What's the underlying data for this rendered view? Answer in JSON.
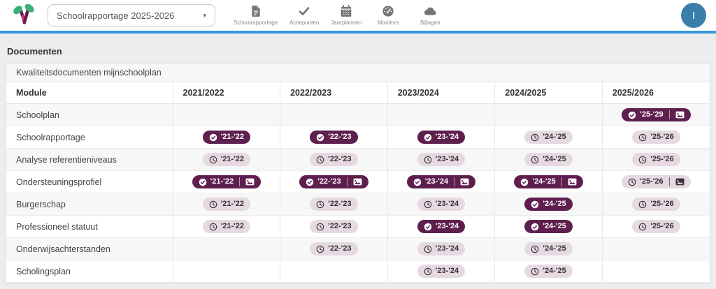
{
  "header": {
    "dropdown": {
      "value": "Schoolrapportage 2025-2026",
      "caret": "▾"
    },
    "nav": [
      {
        "label": "Schoolrapportage",
        "icon": "document-icon"
      },
      {
        "label": "Actiepunten",
        "icon": "check-icon"
      },
      {
        "label": "Jaarplannen",
        "icon": "calendar-icon"
      },
      {
        "label": "Monitors",
        "icon": "gauge-icon"
      },
      {
        "label": "Bijlagen",
        "icon": "cloud-icon"
      }
    ],
    "avatar": {
      "initial": "I",
      "color": "#3a7fa9"
    }
  },
  "page": {
    "title": "Documenten"
  },
  "table": {
    "caption": "Kwaliteitsdocumenten mijnschoolplan",
    "columns": [
      "Module",
      "2021/2022",
      "2022/2023",
      "2023/2024",
      "2024/2025",
      "2025/2026"
    ],
    "rows": [
      {
        "module": "Schoolplan",
        "cells": [
          null,
          null,
          null,
          null,
          {
            "status": "done",
            "label": "'25-'29",
            "attachment": true
          }
        ]
      },
      {
        "module": "Schoolrapportage",
        "cells": [
          {
            "status": "done",
            "label": "'21-'22"
          },
          {
            "status": "done",
            "label": "'22-'23"
          },
          {
            "status": "done",
            "label": "'23-'24"
          },
          {
            "status": "planned",
            "label": "'24-'25"
          },
          {
            "status": "planned",
            "label": "'25-'26"
          }
        ]
      },
      {
        "module": "Analyse referentieniveaus",
        "cells": [
          {
            "status": "planned",
            "label": "'21-'22"
          },
          {
            "status": "planned",
            "label": "'22-'23"
          },
          {
            "status": "planned",
            "label": "'23-'24"
          },
          {
            "status": "planned",
            "label": "'24-'25"
          },
          {
            "status": "planned",
            "label": "'25-'26"
          }
        ]
      },
      {
        "module": "Ondersteuningsprofiel",
        "cells": [
          {
            "status": "done",
            "label": "'21-'22",
            "attachment": true
          },
          {
            "status": "done",
            "label": "'22-'23",
            "attachment": true
          },
          {
            "status": "done",
            "label": "'23-'24",
            "attachment": true
          },
          {
            "status": "done",
            "label": "'24-'25",
            "attachment": true
          },
          {
            "status": "planned",
            "label": "'25-'26",
            "attachment": true
          }
        ]
      },
      {
        "module": "Burgerschap",
        "cells": [
          {
            "status": "planned",
            "label": "'21-'22"
          },
          {
            "status": "planned",
            "label": "'22-'23"
          },
          {
            "status": "planned",
            "label": "'23-'24"
          },
          {
            "status": "done",
            "label": "'24-'25"
          },
          {
            "status": "planned",
            "label": "'25-'26"
          }
        ]
      },
      {
        "module": "Professioneel statuut",
        "cells": [
          {
            "status": "planned",
            "label": "'21-'22"
          },
          {
            "status": "planned",
            "label": "'22-'23"
          },
          {
            "status": "done",
            "label": "'23-'24"
          },
          {
            "status": "done",
            "label": "'24-'25"
          },
          {
            "status": "planned",
            "label": "'25-'26"
          }
        ]
      },
      {
        "module": "Onderwijsachterstanden",
        "cells": [
          null,
          {
            "status": "planned",
            "label": "'22-'23"
          },
          {
            "status": "planned",
            "label": "'23-'24"
          },
          {
            "status": "planned",
            "label": "'24-'25"
          },
          null
        ]
      },
      {
        "module": "Scholingsplan",
        "cells": [
          null,
          null,
          {
            "status": "planned",
            "label": "'23-'24"
          },
          {
            "status": "planned",
            "label": "'24-'25"
          },
          null
        ]
      }
    ]
  },
  "colors": {
    "accent_bar": "#3498db",
    "badge_done": "#5e1f4e",
    "badge_planned": "#e6d9e1",
    "avatar": "#3a7fa9",
    "logo_green": "#3bb273",
    "logo_purple": "#5c2150",
    "logo_pink": "#d6336c"
  }
}
